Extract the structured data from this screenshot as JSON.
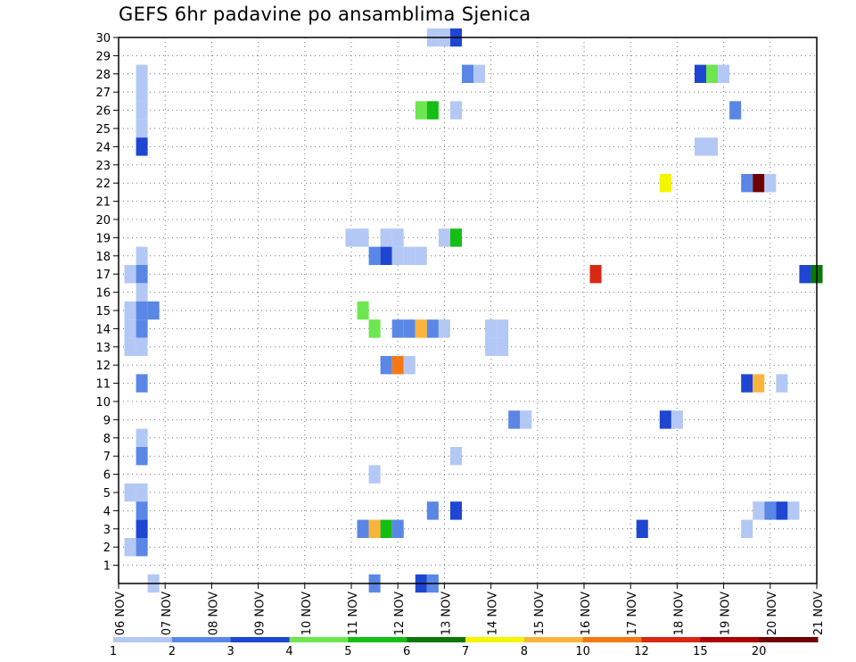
{
  "chart_data": {
    "type": "heatmap",
    "title": "GEFS 6hr padavine po ansamblima Sjenica",
    "x_ticks": [
      "06 NOV",
      "07 NOV",
      "08 NOV",
      "09 NOV",
      "10 NOV",
      "11 NOV",
      "12 NOV",
      "13 NOV",
      "14 NOV",
      "15 NOV",
      "16 NOV",
      "17 NOV",
      "18 NOV",
      "19 NOV",
      "20 NOV",
      "21 NOV"
    ],
    "y_ticks": [
      "1",
      "2",
      "3",
      "4",
      "5",
      "6",
      "7",
      "8",
      "9",
      "10",
      "11",
      "12",
      "13",
      "14",
      "15",
      "16",
      "17",
      "18",
      "19",
      "20",
      "21",
      "22",
      "23",
      "24",
      "25",
      "26",
      "27",
      "28",
      "29",
      "30"
    ],
    "xlim": [
      "06 NOV 00Z",
      "21 NOV 00Z"
    ],
    "ylim": [
      0,
      30
    ],
    "step_hours": 6,
    "grid": true,
    "colorbar": {
      "levels": [
        1,
        2,
        3,
        4,
        5,
        6,
        7,
        8,
        10,
        12,
        15,
        20
      ],
      "tick_labels": [
        "1",
        "2",
        "3",
        "4",
        "5",
        "6",
        "7",
        "8",
        "10",
        "12",
        "15",
        "20"
      ],
      "colors": [
        "#b4c8f5",
        "#5a87e6",
        "#1e46d2",
        "#6ee650",
        "#14be14",
        "#0a780a",
        "#f5f500",
        "#fab43c",
        "#f57814",
        "#d72814",
        "#aa0000",
        "#6e0000"
      ]
    },
    "cells": [
      {
        "member": 30,
        "time": "12 NOV 18Z",
        "class": 1
      },
      {
        "member": 30,
        "time": "13 NOV 00Z",
        "class": 1
      },
      {
        "member": 30,
        "time": "13 NOV 06Z",
        "class": 3
      },
      {
        "member": 28,
        "time": "06 NOV 12Z",
        "class": 1
      },
      {
        "member": 27,
        "time": "06 NOV 12Z",
        "class": 1
      },
      {
        "member": 26,
        "time": "06 NOV 12Z",
        "class": 1
      },
      {
        "member": 25,
        "time": "06 NOV 12Z",
        "class": 1
      },
      {
        "member": 24,
        "time": "06 NOV 12Z",
        "class": 3
      },
      {
        "member": 18,
        "time": "06 NOV 12Z",
        "class": 1
      },
      {
        "member": 17,
        "time": "06 NOV 06Z",
        "class": 1
      },
      {
        "member": 17,
        "time": "06 NOV 12Z",
        "class": 2
      },
      {
        "member": 16,
        "time": "06 NOV 12Z",
        "class": 1
      },
      {
        "member": 15,
        "time": "06 NOV 06Z",
        "class": 1
      },
      {
        "member": 15,
        "time": "06 NOV 12Z",
        "class": 2
      },
      {
        "member": 15,
        "time": "06 NOV 18Z",
        "class": 2
      },
      {
        "member": 14,
        "time": "06 NOV 06Z",
        "class": 1
      },
      {
        "member": 14,
        "time": "06 NOV 12Z",
        "class": 2
      },
      {
        "member": 13,
        "time": "06 NOV 06Z",
        "class": 1
      },
      {
        "member": 13,
        "time": "06 NOV 12Z",
        "class": 1
      },
      {
        "member": 11,
        "time": "06 NOV 12Z",
        "class": 2
      },
      {
        "member": 8,
        "time": "06 NOV 12Z",
        "class": 1
      },
      {
        "member": 7,
        "time": "06 NOV 12Z",
        "class": 2
      },
      {
        "member": 5,
        "time": "06 NOV 06Z",
        "class": 1
      },
      {
        "member": 5,
        "time": "06 NOV 12Z",
        "class": 1
      },
      {
        "member": 4,
        "time": "06 NOV 12Z",
        "class": 2
      },
      {
        "member": 3,
        "time": "06 NOV 12Z",
        "class": 3
      },
      {
        "member": 2,
        "time": "06 NOV 06Z",
        "class": 1
      },
      {
        "member": 2,
        "time": "06 NOV 12Z",
        "class": 2
      },
      {
        "member": 0,
        "time": "06 NOV 18Z",
        "class": 1
      },
      {
        "member": 28,
        "time": "13 NOV 12Z",
        "class": 2
      },
      {
        "member": 28,
        "time": "13 NOV 18Z",
        "class": 1
      },
      {
        "member": 26,
        "time": "12 NOV 12Z",
        "class": 4
      },
      {
        "member": 26,
        "time": "12 NOV 18Z",
        "class": 5
      },
      {
        "member": 26,
        "time": "13 NOV 06Z",
        "class": 1
      },
      {
        "member": 19,
        "time": "11 NOV 00Z",
        "class": 1
      },
      {
        "member": 19,
        "time": "11 NOV 06Z",
        "class": 1
      },
      {
        "member": 19,
        "time": "11 NOV 18Z",
        "class": 1
      },
      {
        "member": 19,
        "time": "12 NOV 00Z",
        "class": 1
      },
      {
        "member": 19,
        "time": "13 NOV 00Z",
        "class": 1
      },
      {
        "member": 19,
        "time": "13 NOV 06Z",
        "class": 5
      },
      {
        "member": 18,
        "time": "11 NOV 12Z",
        "class": 2
      },
      {
        "member": 18,
        "time": "11 NOV 18Z",
        "class": 3
      },
      {
        "member": 18,
        "time": "12 NOV 00Z",
        "class": 1
      },
      {
        "member": 18,
        "time": "12 NOV 06Z",
        "class": 1
      },
      {
        "member": 18,
        "time": "12 NOV 12Z",
        "class": 1
      },
      {
        "member": 15,
        "time": "11 NOV 06Z",
        "class": 4
      },
      {
        "member": 14,
        "time": "11 NOV 12Z",
        "class": 4
      },
      {
        "member": 14,
        "time": "12 NOV 00Z",
        "class": 2
      },
      {
        "member": 14,
        "time": "12 NOV 06Z",
        "class": 2
      },
      {
        "member": 14,
        "time": "12 NOV 12Z",
        "class": 8
      },
      {
        "member": 14,
        "time": "12 NOV 18Z",
        "class": 2
      },
      {
        "member": 14,
        "time": "13 NOV 00Z",
        "class": 1
      },
      {
        "member": 14,
        "time": "14 NOV 00Z",
        "class": 1
      },
      {
        "member": 14,
        "time": "14 NOV 06Z",
        "class": 1
      },
      {
        "member": 13,
        "time": "14 NOV 00Z",
        "class": 1
      },
      {
        "member": 13,
        "time": "14 NOV 06Z",
        "class": 1
      },
      {
        "member": 12,
        "time": "11 NOV 18Z",
        "class": 2
      },
      {
        "member": 12,
        "time": "12 NOV 00Z",
        "class": 9
      },
      {
        "member": 12,
        "time": "12 NOV 06Z",
        "class": 1
      },
      {
        "member": 9,
        "time": "14 NOV 12Z",
        "class": 2
      },
      {
        "member": 9,
        "time": "14 NOV 18Z",
        "class": 1
      },
      {
        "member": 7,
        "time": "13 NOV 06Z",
        "class": 1
      },
      {
        "member": 6,
        "time": "11 NOV 12Z",
        "class": 1
      },
      {
        "member": 4,
        "time": "12 NOV 18Z",
        "class": 2
      },
      {
        "member": 4,
        "time": "13 NOV 06Z",
        "class": 3
      },
      {
        "member": 3,
        "time": "11 NOV 06Z",
        "class": 2
      },
      {
        "member": 3,
        "time": "11 NOV 12Z",
        "class": 8
      },
      {
        "member": 3,
        "time": "11 NOV 18Z",
        "class": 5
      },
      {
        "member": 3,
        "time": "12 NOV 00Z",
        "class": 2
      },
      {
        "member": 0,
        "time": "11 NOV 12Z",
        "class": 2
      },
      {
        "member": 0,
        "time": "12 NOV 12Z",
        "class": 3
      },
      {
        "member": 0,
        "time": "12 NOV 18Z",
        "class": 2
      },
      {
        "member": 28,
        "time": "18 NOV 12Z",
        "class": 3
      },
      {
        "member": 28,
        "time": "18 NOV 18Z",
        "class": 4
      },
      {
        "member": 28,
        "time": "19 NOV 00Z",
        "class": 1
      },
      {
        "member": 26,
        "time": "19 NOV 06Z",
        "class": 2
      },
      {
        "member": 24,
        "time": "18 NOV 12Z",
        "class": 1
      },
      {
        "member": 24,
        "time": "18 NOV 18Z",
        "class": 1
      },
      {
        "member": 22,
        "time": "17 NOV 18Z",
        "class": 7
      },
      {
        "member": 22,
        "time": "19 NOV 12Z",
        "class": 2
      },
      {
        "member": 22,
        "time": "19 NOV 18Z",
        "class": 12
      },
      {
        "member": 22,
        "time": "20 NOV 00Z",
        "class": 1
      },
      {
        "member": 17,
        "time": "16 NOV 06Z",
        "class": 10
      },
      {
        "member": 17,
        "time": "20 NOV 18Z",
        "class": 3
      },
      {
        "member": 17,
        "time": "21 NOV 00Z",
        "class": 6
      },
      {
        "member": 11,
        "time": "19 NOV 12Z",
        "class": 3
      },
      {
        "member": 11,
        "time": "19 NOV 18Z",
        "class": 8
      },
      {
        "member": 11,
        "time": "20 NOV 06Z",
        "class": 1
      },
      {
        "member": 9,
        "time": "17 NOV 18Z",
        "class": 3
      },
      {
        "member": 9,
        "time": "18 NOV 00Z",
        "class": 1
      },
      {
        "member": 4,
        "time": "19 NOV 18Z",
        "class": 1
      },
      {
        "member": 4,
        "time": "20 NOV 00Z",
        "class": 2
      },
      {
        "member": 4,
        "time": "20 NOV 06Z",
        "class": 3
      },
      {
        "member": 4,
        "time": "20 NOV 12Z",
        "class": 1
      },
      {
        "member": 3,
        "time": "17 NOV 06Z",
        "class": 3
      },
      {
        "member": 3,
        "time": "19 NOV 12Z",
        "class": 1
      }
    ]
  }
}
